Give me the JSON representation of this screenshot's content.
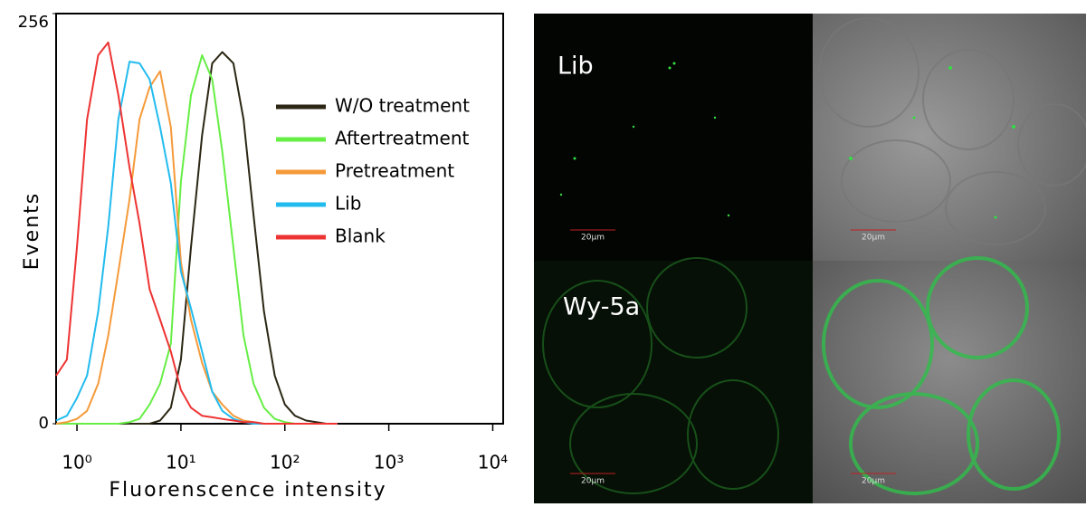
{
  "chart_data": {
    "type": "line",
    "xlabel": "Fluorenscence intensity",
    "ylabel": "Events",
    "xscale": "log",
    "x": [
      0.63,
      0.8,
      1,
      1.25,
      1.6,
      2,
      2.5,
      3.2,
      4,
      5,
      6.3,
      8,
      10,
      12.5,
      16,
      20,
      25,
      32,
      40,
      50,
      63,
      80,
      100,
      125,
      160,
      200,
      250,
      320
    ],
    "series": [
      {
        "name": "W/O treatment",
        "color": "#2b2714",
        "values": [
          0,
          0,
          0,
          0,
          0,
          0,
          0,
          0,
          0,
          0,
          2,
          10,
          40,
          110,
          180,
          225,
          232,
          225,
          190,
          130,
          70,
          30,
          12,
          5,
          2,
          1,
          0,
          0
        ]
      },
      {
        "name": "Aftertreatment",
        "color": "#66ee44",
        "values": [
          0,
          0,
          0,
          0,
          0,
          0,
          0,
          1,
          3,
          12,
          25,
          50,
          151,
          205,
          230,
          215,
          170,
          110,
          55,
          25,
          10,
          3,
          1,
          0,
          0,
          0,
          0,
          0
        ]
      },
      {
        "name": "Pretreatment",
        "color": "#f59a3a",
        "values": [
          0,
          1,
          3,
          8,
          25,
          55,
          95,
          140,
          190,
          210,
          220,
          185,
          101,
          65,
          38,
          20,
          12,
          5,
          2,
          1,
          0,
          0,
          0,
          0,
          0,
          0,
          0,
          0
        ]
      },
      {
        "name": "Lib",
        "color": "#22bbee",
        "values": [
          2,
          5,
          16,
          30,
          70,
          123,
          190,
          226,
          225,
          215,
          185,
          150,
          95,
          72,
          45,
          20,
          8,
          3,
          1,
          0,
          0,
          0,
          0,
          0,
          0,
          0,
          0,
          0
        ]
      },
      {
        "name": "Blank",
        "color": "#ee3333",
        "values": [
          30,
          40,
          110,
          190,
          230,
          238,
          205,
          160,
          125,
          84,
          65,
          45,
          21,
          10,
          5,
          4,
          3,
          2,
          1,
          1,
          0,
          0,
          0,
          0,
          0,
          0,
          0,
          0
        ]
      }
    ],
    "xlim": [
      0.63,
      12600
    ],
    "xticks": [
      {
        "value": 1,
        "label": "10⁰"
      },
      {
        "value": 10,
        "label": "10¹"
      },
      {
        "value": 100,
        "label": "10²"
      },
      {
        "value": 1000,
        "label": "10³"
      },
      {
        "value": 10000,
        "label": "10⁴"
      }
    ],
    "ylim": [
      0,
      256
    ],
    "yticks": [
      0,
      256
    ],
    "legend": "upper right"
  },
  "micrographs": {
    "row_labels": [
      "Lib",
      "Wy-5a"
    ],
    "scale_bars": [
      "20μm",
      "20μm",
      "20μm",
      "20μm"
    ]
  }
}
